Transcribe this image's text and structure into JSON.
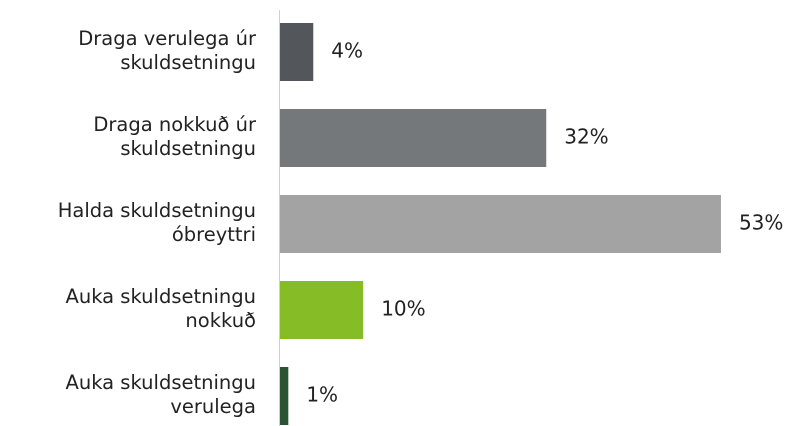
{
  "chart_data": {
    "type": "bar",
    "orientation": "horizontal",
    "categories": [
      "Draga verulega úr\nskuldsetningu",
      "Draga nokkuð úr\nskuldsetningu",
      "Halda skuldsetningu\nóbreyttri",
      "Auka skuldsetningu\nnokkuð",
      "Auka skuldsetningu\nverulega"
    ],
    "values": [
      4,
      32,
      53,
      10,
      1
    ],
    "value_labels": [
      "4%",
      "32%",
      "53%",
      "10%",
      "1%"
    ],
    "colors": [
      "#53565a",
      "#75787b",
      "#a3a3a3",
      "#86bc25",
      "#2b5434"
    ]
  }
}
